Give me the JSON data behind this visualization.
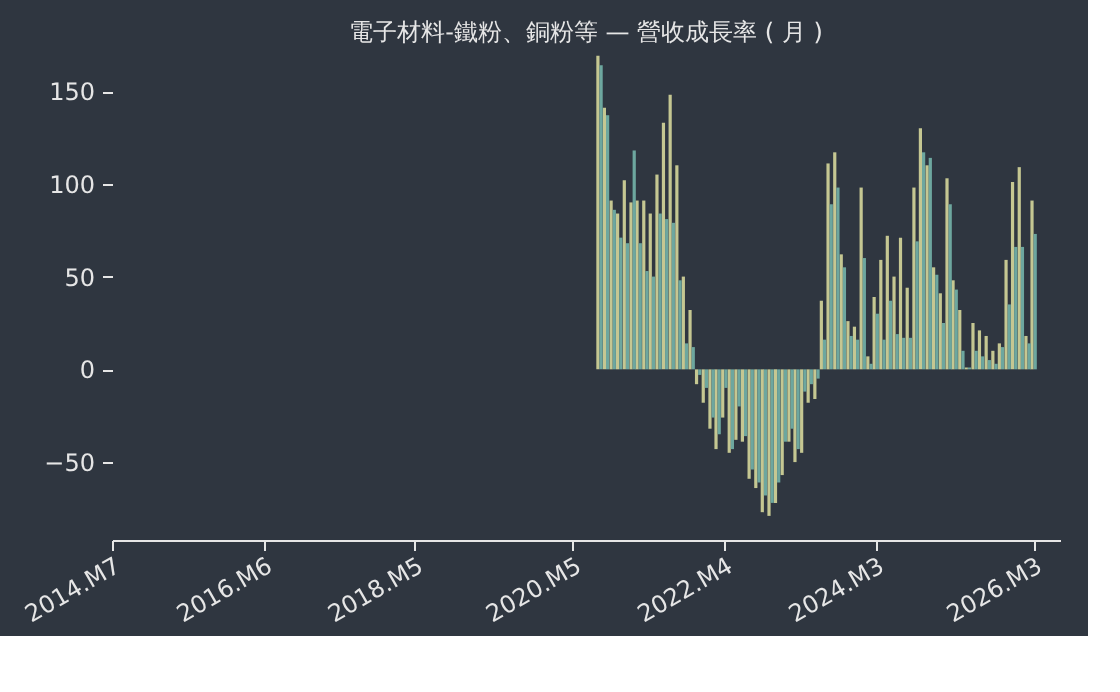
{
  "chart_data": {
    "type": "bar",
    "title": "電子材料-鐵粉、銅粉等 — 營收成長率 ( 月 )",
    "x": [
      "2020-09",
      "2020-10",
      "2020-11",
      "2020-12",
      "2021-01",
      "2021-02",
      "2021-03",
      "2021-04",
      "2021-05",
      "2021-06",
      "2021-07",
      "2021-08",
      "2021-09",
      "2021-10",
      "2021-11",
      "2021-12",
      "2022-01",
      "2022-02",
      "2022-03",
      "2022-04",
      "2022-05",
      "2022-06",
      "2022-07",
      "2022-08",
      "2022-09",
      "2022-10",
      "2022-11",
      "2022-12",
      "2023-01",
      "2023-02",
      "2023-03",
      "2023-04",
      "2023-05",
      "2023-06",
      "2023-07",
      "2023-08",
      "2023-09",
      "2023-10",
      "2023-11",
      "2023-12",
      "2024-01",
      "2024-02",
      "2024-03",
      "2024-04",
      "2024-05",
      "2024-06",
      "2024-07",
      "2024-08",
      "2024-09",
      "2024-10",
      "2024-11",
      "2024-12",
      "2025-01",
      "2025-02",
      "2025-03",
      "2025-04",
      "2025-05",
      "2025-06",
      "2025-07",
      "2025-08",
      "2025-09",
      "2025-10",
      "2025-11",
      "2025-12",
      "2026-01",
      "2026-02",
      "2026-03"
    ],
    "series": [
      {
        "color": "#c5c792",
        "values": [
          169,
          141,
          91,
          84,
          102,
          90,
          91,
          91,
          84,
          105,
          133,
          148,
          110,
          50,
          32,
          -8,
          -18,
          -32,
          -43,
          -26,
          -45,
          -38,
          -39,
          -59,
          -64,
          -77,
          -79,
          -72,
          -57,
          -39,
          -50,
          -45,
          -18,
          -16,
          37,
          111,
          117,
          62,
          26,
          23,
          98,
          7,
          39,
          59,
          72,
          50,
          71,
          44,
          98,
          130,
          110,
          55,
          41,
          103,
          48,
          32,
          1,
          25,
          21,
          18,
          10,
          14,
          59,
          101,
          109,
          18,
          91
        ]
      },
      {
        "color": "#6da79f",
        "values": [
          164,
          137,
          86,
          71,
          68,
          118,
          68,
          53,
          50,
          84,
          81,
          79,
          48,
          14,
          12,
          -3,
          -10,
          -26,
          -35,
          -10,
          -43,
          -20,
          -36,
          -54,
          -61,
          -68,
          -72,
          -61,
          -39,
          -32,
          -43,
          -12,
          -8,
          -5,
          16,
          89,
          98,
          55,
          18,
          16,
          60,
          3,
          30,
          16,
          37,
          19,
          17,
          17,
          69,
          117,
          114,
          51,
          25,
          89,
          43,
          10,
          1,
          10,
          7,
          5,
          3,
          12,
          35,
          66,
          66,
          14,
          73
        ]
      }
    ],
    "xlim": [
      "2014-07",
      "2026-07"
    ],
    "xticks": [
      {
        "value": "2014-07",
        "label": "2014.M7"
      },
      {
        "value": "2016-06",
        "label": "2016.M6"
      },
      {
        "value": "2018-05",
        "label": "2018.M5"
      },
      {
        "value": "2020-05",
        "label": "2020.M5"
      },
      {
        "value": "2022-04",
        "label": "2022.M4"
      },
      {
        "value": "2024-03",
        "label": "2024.M3"
      },
      {
        "value": "2026-03",
        "label": "2026.M3"
      }
    ],
    "ylim": [
      -92,
      170
    ],
    "yticks": [
      -50,
      0,
      50,
      100,
      150
    ]
  }
}
